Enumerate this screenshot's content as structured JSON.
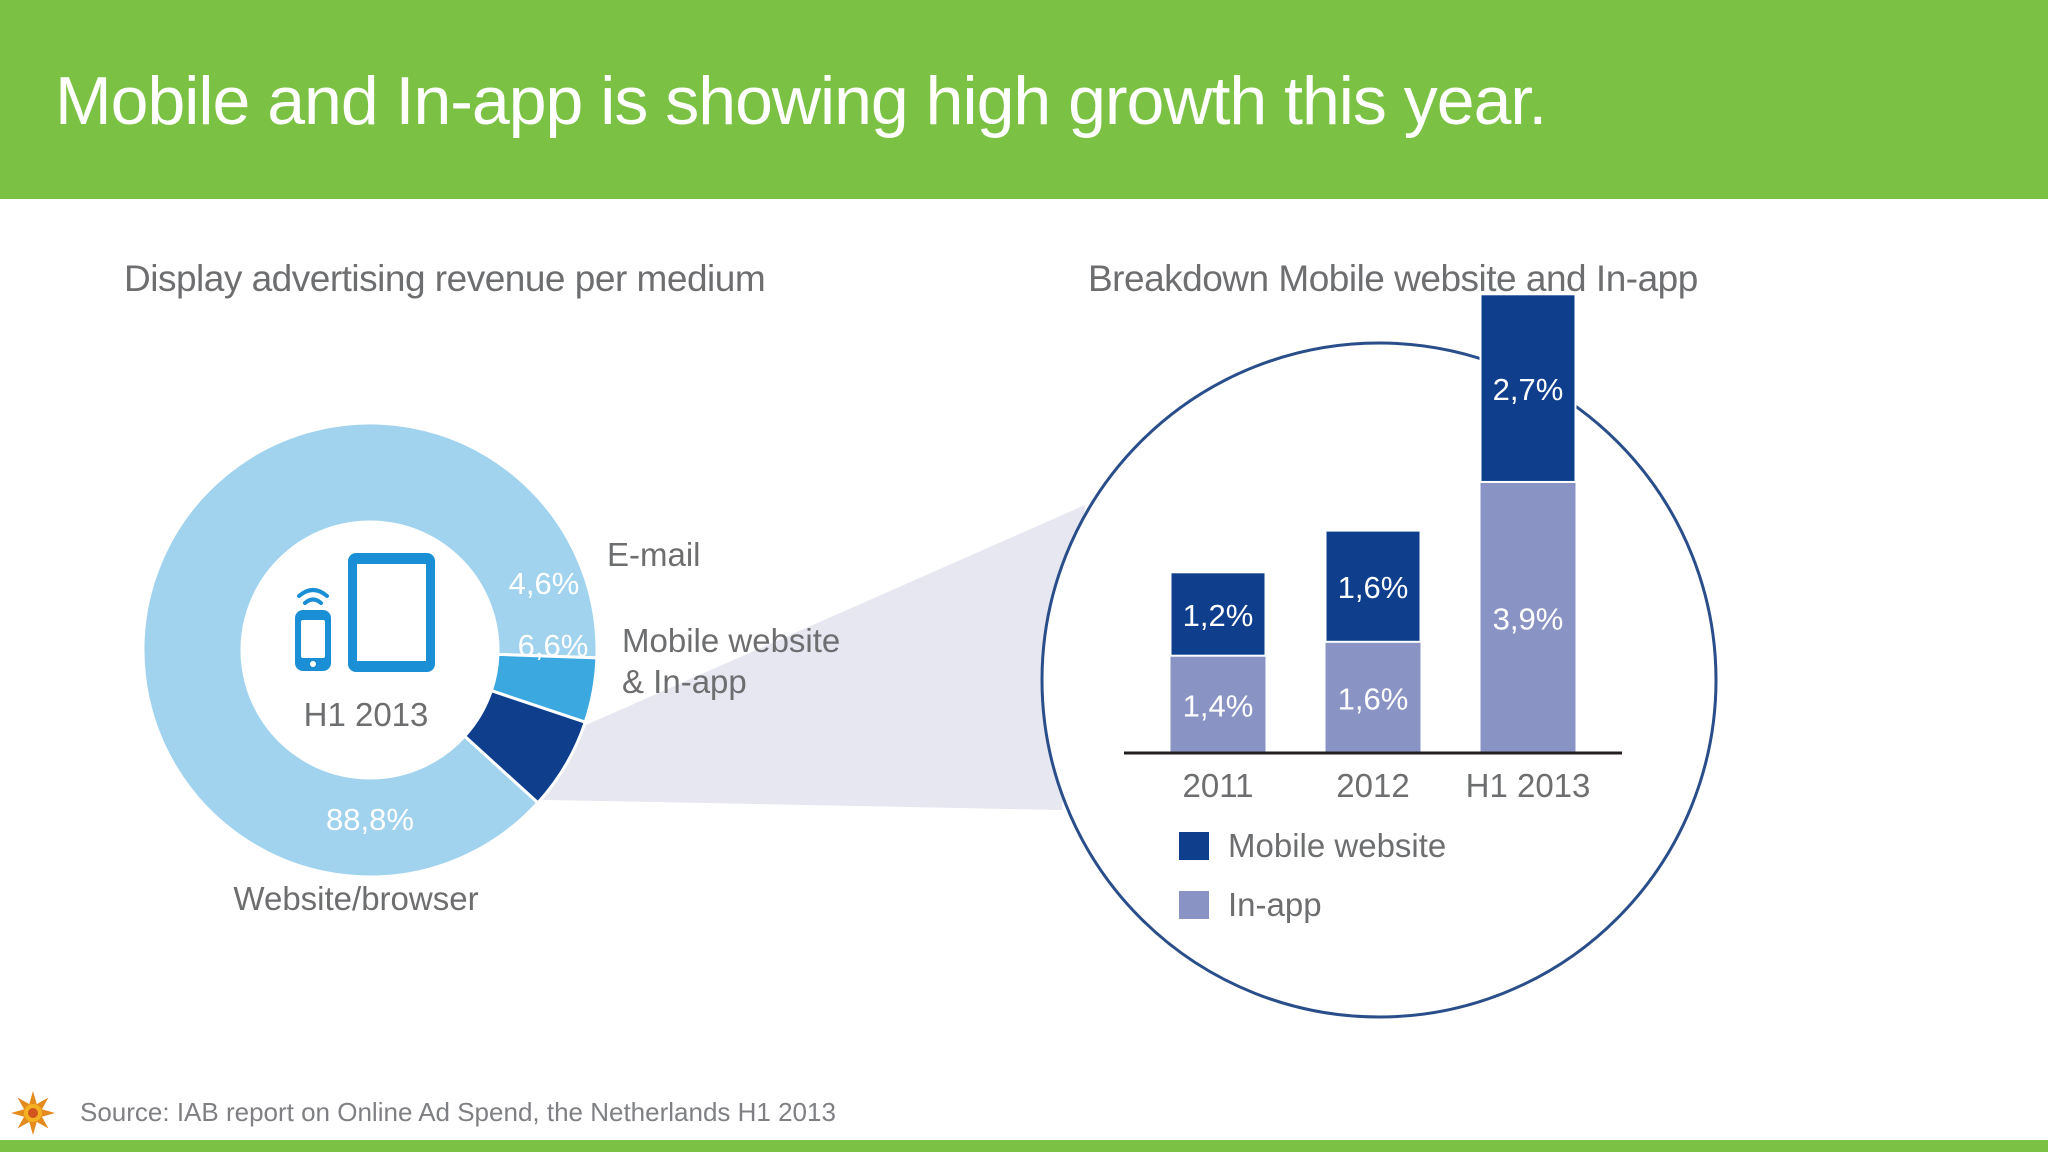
{
  "header": {
    "title": "Mobile and In-app is showing high growth this year."
  },
  "colors": {
    "accent": "#7bc143",
    "website_browser": "#a2d3ee",
    "email": "#3ba9e0",
    "mobile_in_app": "#0f3f8c",
    "mobile_website": "#0f3f8c",
    "in_app": "#8a94c4",
    "zoom_band": "#e6e7f0",
    "device_icon": "#1b8fd6",
    "text_gray": "#6d6e70"
  },
  "icons": [
    "smartphone-wifi-icon",
    "tablet-icon",
    "sun-logo-icon"
  ],
  "footer": {
    "source": "Source: IAB report on Online Ad Spend, the Netherlands H1 2013"
  },
  "chart_data": [
    {
      "type": "pie",
      "title": "Display advertising revenue per medium",
      "center_label": "H1 2013",
      "slices": [
        {
          "label": "Website/browser",
          "value": 88.8,
          "value_label": "88,8%"
        },
        {
          "label": "E-mail",
          "value": 4.6,
          "value_label": "4,6%"
        },
        {
          "label": "Mobile website\n& In-app",
          "value": 6.6,
          "value_label": "6,6%"
        }
      ]
    },
    {
      "type": "bar",
      "stacked": true,
      "title": "Breakdown Mobile website and In-app",
      "categories": [
        "2011",
        "2012",
        "H1 2013"
      ],
      "series": [
        {
          "name": "In-app",
          "values": [
            1.4,
            1.6,
            3.9
          ],
          "labels": [
            "1,4%",
            "1,6%",
            "3,9%"
          ]
        },
        {
          "name": "Mobile website",
          "values": [
            1.2,
            1.6,
            2.7
          ],
          "labels": [
            "1,2%",
            "1,6%",
            "2,7%"
          ]
        }
      ],
      "legend": [
        "Mobile website",
        "In-app"
      ],
      "legend_position": "bottom-left"
    }
  ]
}
